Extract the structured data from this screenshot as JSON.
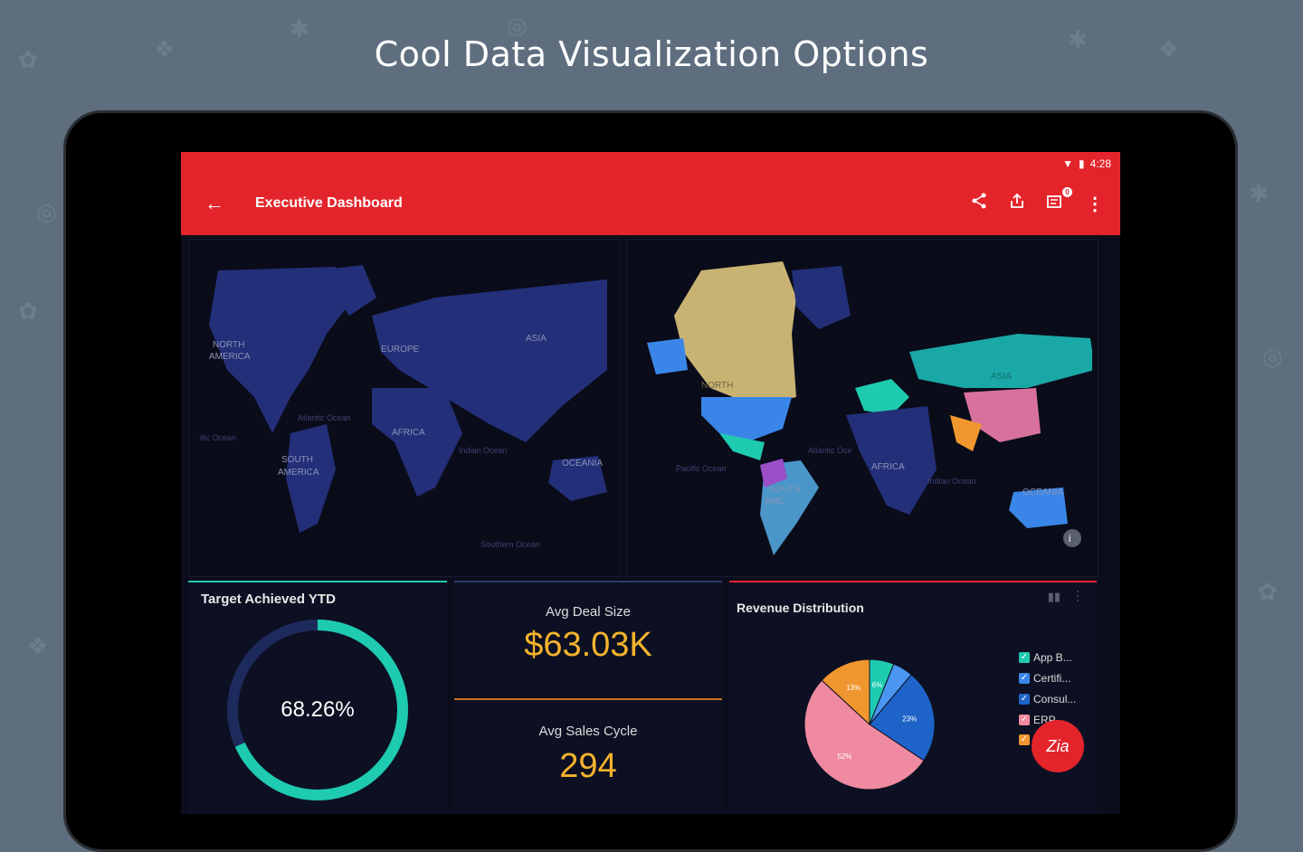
{
  "headline": "Cool Data Visualization Options",
  "status_bar": {
    "time": "4:28",
    "wifi_icon": "wifi-icon",
    "battery_icon": "battery-icon"
  },
  "app_bar": {
    "title": "Executive Dashboard",
    "back_icon": "arrow-back-icon",
    "actions": [
      "share-icon",
      "upload-icon",
      "notifications-icon",
      "more-vert-icon"
    ],
    "badge_count": "0"
  },
  "map_left": {
    "labels": [
      "NORTH",
      "AMERICA",
      "EUROPE",
      "ASIA",
      "AFRICA",
      "SOUTH",
      "AMERICA",
      "OCEANIA",
      "Atlantic Ocean",
      "Indian Ocean",
      "ific Ocean",
      "Southern Ocean"
    ]
  },
  "map_right": {
    "labels": [
      "NORTH",
      "ASIA",
      "AFRICA",
      "SOUTH",
      "AME",
      "OCEANIA",
      "Atlantic Oce",
      "Pacific Ocean",
      "Indian Ocean"
    ]
  },
  "target": {
    "title": "Target Achieved YTD",
    "value": "68.26%",
    "fraction": 0.6826,
    "accent": "#1ecbb0",
    "track": "#1d2a5c"
  },
  "avg_deal": {
    "label": "Avg Deal Size",
    "value": "$63.03K"
  },
  "avg_cycle": {
    "label": "Avg Sales Cycle",
    "value": "294"
  },
  "revenue": {
    "title": "Revenue Distribution",
    "legend": [
      {
        "label": "App B...",
        "color": "#1ecbb0"
      },
      {
        "label": "Certifi...",
        "color": "#3a86e8"
      },
      {
        "label": "Consul...",
        "color": "#1e64c8"
      },
      {
        "label": "ERP",
        "color": "#f08aa0"
      },
      {
        "label": "",
        "color": "#f0962e"
      }
    ]
  },
  "chart_data": {
    "type": "pie",
    "title": "Revenue Distribution",
    "slices": [
      {
        "label": "App B...",
        "value": 6,
        "color": "#1ecbb0"
      },
      {
        "label": "Certifi...",
        "value": 5,
        "color": "#4a96f0"
      },
      {
        "label": "Consul...",
        "value": 23,
        "color": "#1e64c8"
      },
      {
        "label": "ERP",
        "value": 52,
        "color": "#f08aa0"
      },
      {
        "label": "",
        "value": 13,
        "color": "#f0962e"
      }
    ],
    "data_labels": [
      "6%",
      "23%",
      "52%",
      "13%"
    ]
  },
  "fab": {
    "label": "Zia"
  },
  "colors": {
    "brand_red": "#e3242b",
    "kpi_gold": "#f5b32d"
  }
}
